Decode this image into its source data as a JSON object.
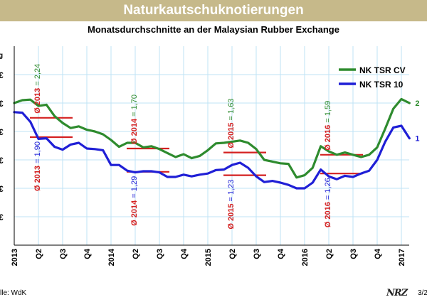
{
  "header": {
    "title": "Naturkautschuknotierungen",
    "subtitle": "Monatsdurchschnitte an der Malaysian Rubber Exchange"
  },
  "footer": {
    "source": "lle: WdK",
    "logo": "NRZ",
    "page": "3/2"
  },
  "colors": {
    "banner": "#c6b98a",
    "cv": "#2e8b2e",
    "tsr10": "#1f1fd6",
    "avg_line": "#d42020",
    "grid": "#bfe3f5"
  },
  "chart_data": {
    "type": "line",
    "ylabel": "g",
    "ylim": [
      0,
      3.5
    ],
    "y_ticks": [
      0.5,
      1.0,
      1.5,
      2.0,
      2.5,
      3.0
    ],
    "y_tick_label": "€",
    "x_tick_labels": [
      "2013",
      "Q2",
      "Q3",
      "Q4",
      "2014",
      "Q2",
      "Q3",
      "Q4",
      "2015",
      "Q2",
      "Q3",
      "Q4",
      "2016",
      "Q2",
      "Q3",
      "Q4",
      "2017"
    ],
    "grid": true,
    "legend_position": "top-right",
    "series": [
      {
        "name": "NK TSR CV",
        "end_label": "2",
        "values": [
          2.5,
          2.55,
          2.56,
          2.45,
          2.47,
          2.27,
          2.15,
          2.06,
          2.09,
          2.03,
          2.0,
          1.95,
          1.85,
          1.73,
          1.8,
          1.8,
          1.72,
          1.74,
          1.69,
          1.62,
          1.55,
          1.6,
          1.53,
          1.57,
          1.67,
          1.79,
          1.8,
          1.82,
          1.84,
          1.8,
          1.69,
          1.5,
          1.47,
          1.44,
          1.43,
          1.19,
          1.23,
          1.36,
          1.74,
          1.65,
          1.59,
          1.63,
          1.59,
          1.55,
          1.59,
          1.72,
          2.05,
          2.4,
          2.57,
          2.5
        ]
      },
      {
        "name": "NK TSR 10",
        "end_label": "1",
        "values": [
          2.34,
          2.33,
          2.17,
          1.87,
          1.88,
          1.73,
          1.68,
          1.77,
          1.8,
          1.7,
          1.69,
          1.67,
          1.41,
          1.41,
          1.31,
          1.28,
          1.3,
          1.3,
          1.28,
          1.2,
          1.2,
          1.24,
          1.21,
          1.24,
          1.26,
          1.32,
          1.33,
          1.41,
          1.45,
          1.36,
          1.21,
          1.11,
          1.13,
          1.1,
          1.06,
          1.0,
          1.0,
          1.1,
          1.33,
          1.21,
          1.16,
          1.22,
          1.2,
          1.26,
          1.31,
          1.5,
          1.82,
          2.07,
          2.1,
          1.88
        ]
      }
    ],
    "averages": [
      {
        "label": "Ø 2013 = 2,24",
        "series": "NK TSR CV",
        "value": 2.24
      },
      {
        "label": "Ø 2013 = 1,90",
        "series": "NK TSR 10",
        "value": 1.9
      },
      {
        "label": "Ø 2014 = 1,70",
        "series": "NK TSR CV",
        "value": 1.7
      },
      {
        "label": "Ø 2014 = 1,29",
        "series": "NK TSR 10",
        "value": 1.29
      },
      {
        "label": "Ø 2015 = 1,63",
        "series": "NK TSR CV",
        "value": 1.63
      },
      {
        "label": "Ø 2015 = 1,23",
        "series": "NK TSR 10",
        "value": 1.23
      },
      {
        "label": "Ø 2016 = 1,59",
        "series": "NK TSR CV",
        "value": 1.59
      },
      {
        "label": "Ø 2016 = 1,26",
        "series": "NK TSR 10",
        "value": 1.26
      }
    ]
  }
}
